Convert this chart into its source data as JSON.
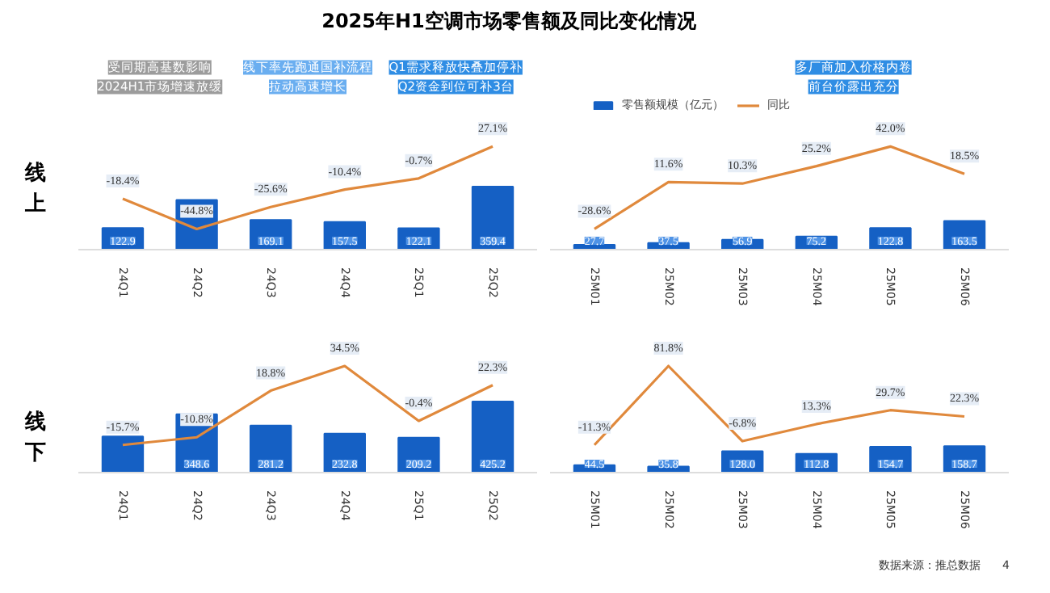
{
  "chart_data": [
    {
      "type": "bar",
      "title": "2025年H1空调市场零售额及同比变化情况",
      "ylabel": "线上",
      "categories": [
        "24Q1",
        "24Q2",
        "24Q3",
        "24Q4",
        "25Q1",
        "25Q2"
      ],
      "data_labels": true,
      "tick_labels": "x",
      "annotations": [
        "受同期高基数影响",
        "2024H1市场增速放缓",
        "线下率先跑通国补流程",
        "拉动高速增长",
        "Q1需求释放快叠加停补",
        "Q2资金到位可补3台"
      ],
      "series": [
        {
          "color": "#1560c4",
          "values": [
            122.9,
            283.6,
            169.1,
            157.5,
            122.1,
            359.4
          ],
          "value_labels": [
            "122.9",
            null,
            "169.1",
            "157.5",
            "122.1",
            "359.4"
          ]
        },
        {
          "type": "line",
          "axis": "y2",
          "color": "#e0893c",
          "values": [
            -18.4,
            -44.8,
            -25.6,
            -10.4,
            -0.7,
            27.1
          ],
          "value_labels": [
            "-18.4%",
            "-44.8%",
            "-25.6%",
            "-10.4%",
            "-0.7%",
            "27.1%"
          ]
        }
      ]
    },
    {
      "type": "bar",
      "categories": [
        "25M01",
        "25M02",
        "25M03",
        "25M04",
        "25M05",
        "25M06"
      ],
      "data_labels": true,
      "tick_labels": "x",
      "legend": "top left",
      "annotations": [
        "多厂商加入价格内卷",
        "前台价露出充分"
      ],
      "series": [
        {
          "name": "零售额规模（亿元）",
          "color": "#1560c4",
          "values": [
            27.7,
            37.5,
            56.9,
            75.2,
            122.8,
            163.5
          ],
          "value_labels": [
            "27.7",
            "37.5",
            "56.9",
            "75.2",
            "122.8",
            "163.5"
          ]
        },
        {
          "type": "line",
          "name": "同比",
          "axis": "y2",
          "color": "#e0893c",
          "values": [
            -28.6,
            11.6,
            10.3,
            25.2,
            42.0,
            18.5
          ],
          "value_labels": [
            "-28.6%",
            "11.6%",
            "10.3%",
            "25.2%",
            "42.0%",
            "18.5%"
          ]
        }
      ]
    },
    {
      "type": "bar",
      "ylabel": "线下",
      "categories": [
        "24Q1",
        "24Q2",
        "24Q3",
        "24Q4",
        "25Q1",
        "25Q2"
      ],
      "data_labels": true,
      "tick_labels": "x",
      "series": [
        {
          "color": "#1560c4",
          "values": [
            216,
            348.6,
            281.2,
            232.8,
            209.2,
            425.2
          ],
          "value_labels": [
            null,
            "348.6",
            "281.2",
            "232.8",
            "209.2",
            "425.2"
          ]
        },
        {
          "type": "line",
          "axis": "y2",
          "color": "#e0893c",
          "values": [
            -15.7,
            -10.8,
            18.8,
            34.5,
            -0.4,
            22.3
          ],
          "value_labels": [
            "-15.7%",
            "-10.8%",
            "18.8%",
            "34.5%",
            "-0.4%",
            "22.3%"
          ]
        }
      ]
    },
    {
      "type": "bar",
      "categories": [
        "25M01",
        "25M02",
        "25M03",
        "25M04",
        "25M05",
        "25M06"
      ],
      "data_labels": true,
      "tick_labels": "x",
      "annotations": [
        "数据来源：推总数据",
        "4"
      ],
      "series": [
        {
          "color": "#1560c4",
          "values": [
            44.5,
            35.8,
            128.0,
            112.8,
            154.7,
            158.7
          ],
          "value_labels": [
            "44.5",
            "35.8",
            "128.0",
            "112.8",
            "154.7",
            "158.7"
          ]
        },
        {
          "type": "line",
          "axis": "y2",
          "color": "#e0893c",
          "values": [
            -11.3,
            81.8,
            -6.8,
            13.3,
            29.7,
            22.3
          ],
          "value_labels": [
            "-11.3%",
            "81.8%",
            "-6.8%",
            "13.3%",
            "29.7%",
            "22.3%"
          ]
        }
      ]
    }
  ]
}
